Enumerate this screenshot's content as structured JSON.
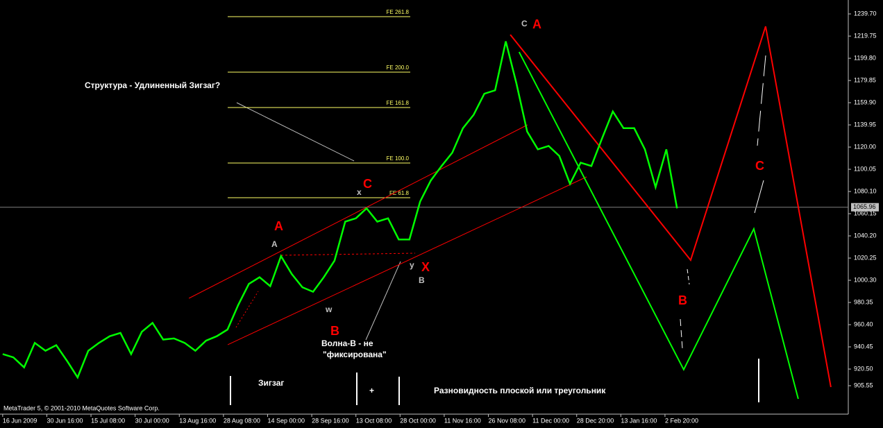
{
  "chart_data": {
    "type": "line",
    "x": [
      0,
      4,
      8,
      12,
      16,
      20,
      24,
      28,
      32,
      36,
      40,
      44,
      48,
      52,
      56,
      60,
      64,
      68,
      72,
      76,
      80,
      84,
      88,
      92,
      96,
      100,
      104,
      108,
      112,
      116,
      120,
      124,
      128,
      132,
      136,
      140,
      144,
      148,
      152,
      156,
      160,
      164,
      168,
      172,
      176,
      180,
      184,
      188,
      192,
      196,
      200,
      204,
      208,
      212,
      216,
      220,
      224,
      228,
      232,
      236,
      240,
      244,
      248,
      252
    ],
    "values": [
      934,
      931,
      922,
      944,
      937,
      942,
      928,
      913,
      937,
      944,
      950,
      953,
      934,
      954,
      962,
      947,
      948,
      944,
      937,
      946,
      950,
      956,
      978,
      997,
      1003,
      995,
      1022,
      1006,
      994,
      990,
      1003,
      1018,
      1053,
      1056,
      1065,
      1053,
      1056,
      1037,
      1037,
      1071,
      1090,
      1103,
      1115,
      1137,
      1149,
      1168,
      1171,
      1215,
      1177,
      1134,
      1118,
      1121,
      1112,
      1087,
      1106,
      1103,
      1128,
      1152,
      1137,
      1137,
      1118,
      1084,
      1118,
      1065
    ],
    "color": "#00ff00",
    "xlim": [
      -1,
      316
    ],
    "ylim": [
      880,
      1252.2
    ],
    "xticks": [
      {
        "value": 0,
        "label": "16 Jun 2009"
      },
      {
        "value": 16.5,
        "label": "30 Jun 16:00"
      },
      {
        "value": 33,
        "label": "15 Jul 08:00"
      },
      {
        "value": 49.5,
        "label": "30 Jul 00:00"
      },
      {
        "value": 66,
        "label": "13 Aug 16:00"
      },
      {
        "value": 82.5,
        "label": "28 Aug 08:00"
      },
      {
        "value": 99,
        "label": "14 Sep 00:00"
      },
      {
        "value": 115.5,
        "label": "28 Sep 16:00"
      },
      {
        "value": 132,
        "label": "13 Oct 08:00"
      },
      {
        "value": 148.5,
        "label": "28 Oct 00:00"
      },
      {
        "value": 165,
        "label": "11 Nov 16:00"
      },
      {
        "value": 181.5,
        "label": "26 Nov 08:00"
      },
      {
        "value": 198,
        "label": "11 Dec 00:00"
      },
      {
        "value": 214.5,
        "label": "28 Dec 20:00"
      },
      {
        "value": 231,
        "label": "13 Jan 16:00"
      },
      {
        "value": 247.5,
        "label": "2 Feb 20:00"
      }
    ],
    "yticks": [
      {
        "value": 1239.7,
        "label": "1239.70"
      },
      1219.75,
      {
        "value": 1199.8,
        "label": "1199.80"
      },
      1179.85,
      {
        "value": 1159.9,
        "label": "1159.90"
      },
      1139.95,
      {
        "value": 1120,
        "label": "1120.00"
      },
      1100.05,
      {
        "value": 1080.1,
        "label": "1080.10"
      },
      1060.15,
      {
        "value": 1040.2,
        "label": "1040.20"
      },
      1020.25,
      {
        "value": 1000.3,
        "label": "1000.30"
      },
      980.35,
      {
        "value": 960.4,
        "label": "960.40"
      },
      940.45,
      {
        "value": 920.5,
        "label": "920.50"
      },
      905.55
    ],
    "current_price": 1065.96,
    "fib_levels": [
      {
        "label": "FE 261.8",
        "value": 1237.2
      },
      {
        "label": "FE 200.0",
        "value": 1187.4
      },
      {
        "label": "FE 161.8",
        "value": 1155.6
      },
      {
        "label": "FE 100.0",
        "value": 1105.7
      },
      {
        "label": "FE 61.8",
        "value": 1074.5
      }
    ],
    "drawings": [
      {
        "color": "#ff0000",
        "x": [
          69.6,
          196.1
        ],
        "y": [
          984.1,
          1140
        ]
      },
      {
        "color": "#ff0000",
        "x": [
          84.1,
          218.2
        ],
        "y": [
          942.4,
          1093.2
        ]
      },
      {
        "color": "#ff0000",
        "x": [
          189.7,
          257.1,
          285.1,
          309.5
        ],
        "y": [
          1221,
          1018.4,
          1228.5,
          904.3
        ]
      },
      {
        "color": "#00ff00",
        "x": [
          193,
          254.5,
          280.7,
          297.3
        ],
        "y": [
          1205.5,
          920,
          1046.5,
          893.7
        ]
      }
    ],
    "annotations": [
      "C",
      "A",
      "x",
      "C",
      "A",
      "A",
      "y",
      "X",
      "B",
      "w",
      "B",
      "B",
      "C",
      "Волна-В - не",
      "\"фиксирована\"",
      "Структура - Удлиненный Зигзаг?",
      "Зигзаг",
      "+",
      "Разновидность плоской или треугольник"
    ],
    "watermark": "MetaTrader 5, © 2001-2010 MetaQuotes Software Corp."
  }
}
